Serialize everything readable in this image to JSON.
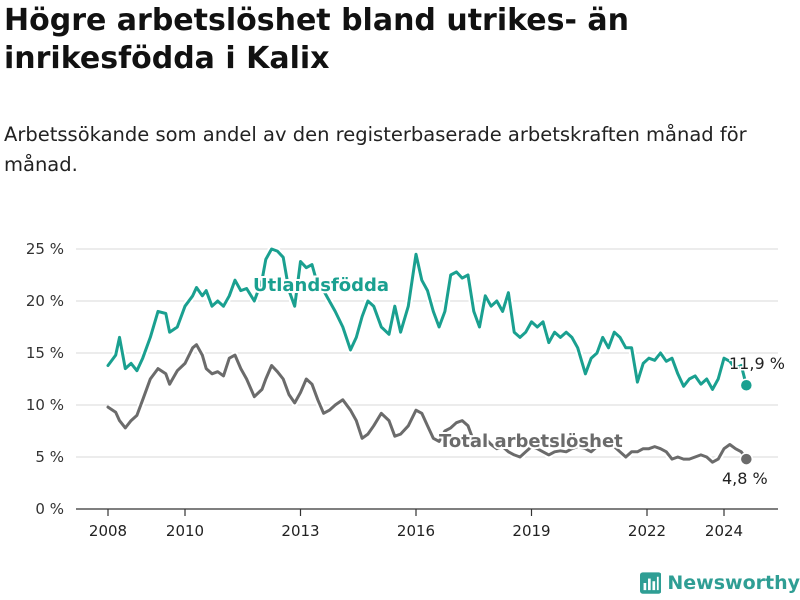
{
  "title": "Högre arbetslöshet bland utrikes- än inrikesfödda i Kalix",
  "subtitle": "Arbetssökande som andel av den registerbaserade arbetskraften månad för månad.",
  "brand": {
    "name": "Newsworthy",
    "icon": "bar-chart-logo-icon",
    "color": "#2f9e94"
  },
  "chart_data": {
    "type": "line",
    "grid": true,
    "legend": "inline labels",
    "ylim": [
      0,
      26
    ],
    "xlim": [
      2007.6,
      2025.4
    ],
    "y_ticks": [
      {
        "value": 0,
        "label": "0 %"
      },
      {
        "value": 5,
        "label": "5 %"
      },
      {
        "value": 10,
        "label": "10 %"
      },
      {
        "value": 15,
        "label": "15 %"
      },
      {
        "value": 20,
        "label": "20 %"
      },
      {
        "value": 25,
        "label": "25 %"
      }
    ],
    "x_ticks": [
      {
        "value": 2008,
        "label": "2008"
      },
      {
        "value": 2010,
        "label": "2010"
      },
      {
        "value": 2013,
        "label": "2013"
      },
      {
        "value": 2016,
        "label": "2016"
      },
      {
        "value": 2019,
        "label": "2019"
      },
      {
        "value": 2022,
        "label": "2022"
      },
      {
        "value": 2024,
        "label": "2024"
      }
    ],
    "series": [
      {
        "name": "Utlandsfödda",
        "color": "#1aa090",
        "end_label": "11,9 %",
        "points": [
          [
            2008.0,
            13.8
          ],
          [
            2008.2,
            14.8
          ],
          [
            2008.3,
            16.5
          ],
          [
            2008.45,
            13.5
          ],
          [
            2008.6,
            14.0
          ],
          [
            2008.75,
            13.3
          ],
          [
            2008.9,
            14.5
          ],
          [
            2009.1,
            16.5
          ],
          [
            2009.3,
            19.0
          ],
          [
            2009.5,
            18.8
          ],
          [
            2009.6,
            17.0
          ],
          [
            2009.8,
            17.5
          ],
          [
            2010.0,
            19.5
          ],
          [
            2010.2,
            20.5
          ],
          [
            2010.3,
            21.3
          ],
          [
            2010.45,
            20.5
          ],
          [
            2010.55,
            21.0
          ],
          [
            2010.7,
            19.5
          ],
          [
            2010.85,
            20.0
          ],
          [
            2011.0,
            19.5
          ],
          [
            2011.15,
            20.5
          ],
          [
            2011.3,
            22.0
          ],
          [
            2011.45,
            21.0
          ],
          [
            2011.6,
            21.2
          ],
          [
            2011.8,
            20.0
          ],
          [
            2012.0,
            22.0
          ],
          [
            2012.1,
            24.0
          ],
          [
            2012.25,
            25.0
          ],
          [
            2012.4,
            24.8
          ],
          [
            2012.55,
            24.2
          ],
          [
            2012.7,
            21.0
          ],
          [
            2012.85,
            19.5
          ],
          [
            2013.0,
            23.8
          ],
          [
            2013.15,
            23.2
          ],
          [
            2013.3,
            23.5
          ],
          [
            2013.45,
            21.5
          ],
          [
            2013.6,
            21.0
          ],
          [
            2013.75,
            20.0
          ],
          [
            2013.9,
            19.0
          ],
          [
            2014.1,
            17.5
          ],
          [
            2014.3,
            15.3
          ],
          [
            2014.45,
            16.5
          ],
          [
            2014.6,
            18.5
          ],
          [
            2014.75,
            20.0
          ],
          [
            2014.9,
            19.5
          ],
          [
            2015.1,
            17.5
          ],
          [
            2015.3,
            16.8
          ],
          [
            2015.45,
            19.5
          ],
          [
            2015.6,
            17.0
          ],
          [
            2015.8,
            19.5
          ],
          [
            2016.0,
            24.5
          ],
          [
            2016.15,
            22.0
          ],
          [
            2016.3,
            21.0
          ],
          [
            2016.45,
            19.0
          ],
          [
            2016.6,
            17.5
          ],
          [
            2016.75,
            19.0
          ],
          [
            2016.9,
            22.5
          ],
          [
            2017.05,
            22.8
          ],
          [
            2017.2,
            22.2
          ],
          [
            2017.35,
            22.5
          ],
          [
            2017.5,
            19.0
          ],
          [
            2017.65,
            17.5
          ],
          [
            2017.8,
            20.5
          ],
          [
            2017.95,
            19.5
          ],
          [
            2018.1,
            20.0
          ],
          [
            2018.25,
            19.0
          ],
          [
            2018.4,
            20.8
          ],
          [
            2018.55,
            17.0
          ],
          [
            2018.7,
            16.5
          ],
          [
            2018.85,
            17.0
          ],
          [
            2019.0,
            18.0
          ],
          [
            2019.15,
            17.5
          ],
          [
            2019.3,
            18.0
          ],
          [
            2019.45,
            16.0
          ],
          [
            2019.6,
            17.0
          ],
          [
            2019.75,
            16.5
          ],
          [
            2019.9,
            17.0
          ],
          [
            2020.05,
            16.5
          ],
          [
            2020.2,
            15.5
          ],
          [
            2020.4,
            13.0
          ],
          [
            2020.55,
            14.5
          ],
          [
            2020.7,
            15.0
          ],
          [
            2020.85,
            16.5
          ],
          [
            2021.0,
            15.5
          ],
          [
            2021.15,
            17.0
          ],
          [
            2021.3,
            16.5
          ],
          [
            2021.45,
            15.5
          ],
          [
            2021.6,
            15.5
          ],
          [
            2021.75,
            12.2
          ],
          [
            2021.9,
            14.0
          ],
          [
            2022.05,
            14.5
          ],
          [
            2022.2,
            14.3
          ],
          [
            2022.35,
            15.0
          ],
          [
            2022.5,
            14.2
          ],
          [
            2022.65,
            14.5
          ],
          [
            2022.8,
            13.0
          ],
          [
            2022.95,
            11.8
          ],
          [
            2023.1,
            12.5
          ],
          [
            2023.25,
            12.8
          ],
          [
            2023.4,
            12.0
          ],
          [
            2023.55,
            12.5
          ],
          [
            2023.7,
            11.5
          ],
          [
            2023.85,
            12.5
          ],
          [
            2024.0,
            14.5
          ],
          [
            2024.15,
            14.2
          ],
          [
            2024.3,
            13.5
          ],
          [
            2024.45,
            13.8
          ],
          [
            2024.58,
            11.9
          ]
        ]
      },
      {
        "name": "Total arbetslöshet",
        "color": "#6b6b6b",
        "end_label": "4,8 %",
        "points": [
          [
            2008.0,
            9.8
          ],
          [
            2008.2,
            9.3
          ],
          [
            2008.3,
            8.5
          ],
          [
            2008.45,
            7.8
          ],
          [
            2008.6,
            8.5
          ],
          [
            2008.75,
            9.0
          ],
          [
            2008.9,
            10.5
          ],
          [
            2009.1,
            12.5
          ],
          [
            2009.3,
            13.5
          ],
          [
            2009.5,
            13.0
          ],
          [
            2009.6,
            12.0
          ],
          [
            2009.8,
            13.3
          ],
          [
            2010.0,
            14.0
          ],
          [
            2010.2,
            15.5
          ],
          [
            2010.3,
            15.8
          ],
          [
            2010.45,
            14.8
          ],
          [
            2010.55,
            13.5
          ],
          [
            2010.7,
            13.0
          ],
          [
            2010.85,
            13.2
          ],
          [
            2011.0,
            12.8
          ],
          [
            2011.15,
            14.5
          ],
          [
            2011.3,
            14.8
          ],
          [
            2011.45,
            13.5
          ],
          [
            2011.6,
            12.5
          ],
          [
            2011.8,
            10.8
          ],
          [
            2012.0,
            11.5
          ],
          [
            2012.1,
            12.5
          ],
          [
            2012.25,
            13.8
          ],
          [
            2012.4,
            13.2
          ],
          [
            2012.55,
            12.5
          ],
          [
            2012.7,
            11.0
          ],
          [
            2012.85,
            10.2
          ],
          [
            2013.0,
            11.2
          ],
          [
            2013.15,
            12.5
          ],
          [
            2013.3,
            12.0
          ],
          [
            2013.45,
            10.5
          ],
          [
            2013.6,
            9.2
          ],
          [
            2013.75,
            9.5
          ],
          [
            2013.9,
            10.0
          ],
          [
            2014.1,
            10.5
          ],
          [
            2014.3,
            9.5
          ],
          [
            2014.45,
            8.5
          ],
          [
            2014.6,
            6.8
          ],
          [
            2014.75,
            7.2
          ],
          [
            2014.9,
            8.0
          ],
          [
            2015.1,
            9.2
          ],
          [
            2015.3,
            8.5
          ],
          [
            2015.45,
            7.0
          ],
          [
            2015.6,
            7.2
          ],
          [
            2015.8,
            8.0
          ],
          [
            2016.0,
            9.5
          ],
          [
            2016.15,
            9.2
          ],
          [
            2016.3,
            8.0
          ],
          [
            2016.45,
            6.8
          ],
          [
            2016.6,
            6.5
          ],
          [
            2016.75,
            7.5
          ],
          [
            2016.9,
            7.8
          ],
          [
            2017.05,
            8.3
          ],
          [
            2017.2,
            8.5
          ],
          [
            2017.35,
            8.0
          ],
          [
            2017.5,
            6.5
          ],
          [
            2017.65,
            6.0
          ],
          [
            2017.8,
            6.8
          ],
          [
            2017.95,
            6.2
          ],
          [
            2018.1,
            5.8
          ],
          [
            2018.25,
            6.0
          ],
          [
            2018.4,
            5.5
          ],
          [
            2018.55,
            5.2
          ],
          [
            2018.7,
            5.0
          ],
          [
            2018.85,
            5.5
          ],
          [
            2019.0,
            6.0
          ],
          [
            2019.15,
            5.8
          ],
          [
            2019.3,
            5.5
          ],
          [
            2019.45,
            5.2
          ],
          [
            2019.6,
            5.5
          ],
          [
            2019.75,
            5.6
          ],
          [
            2019.9,
            5.5
          ],
          [
            2020.05,
            5.8
          ],
          [
            2020.2,
            6.0
          ],
          [
            2020.4,
            5.8
          ],
          [
            2020.55,
            5.5
          ],
          [
            2020.7,
            6.0
          ],
          [
            2020.85,
            6.5
          ],
          [
            2021.0,
            6.5
          ],
          [
            2021.15,
            6.0
          ],
          [
            2021.3,
            5.5
          ],
          [
            2021.45,
            5.0
          ],
          [
            2021.6,
            5.5
          ],
          [
            2021.75,
            5.5
          ],
          [
            2021.9,
            5.8
          ],
          [
            2022.05,
            5.8
          ],
          [
            2022.2,
            6.0
          ],
          [
            2022.35,
            5.8
          ],
          [
            2022.5,
            5.5
          ],
          [
            2022.65,
            4.8
          ],
          [
            2022.8,
            5.0
          ],
          [
            2022.95,
            4.8
          ],
          [
            2023.1,
            4.8
          ],
          [
            2023.25,
            5.0
          ],
          [
            2023.4,
            5.2
          ],
          [
            2023.55,
            5.0
          ],
          [
            2023.7,
            4.5
          ],
          [
            2023.85,
            4.8
          ],
          [
            2024.0,
            5.8
          ],
          [
            2024.15,
            6.2
          ],
          [
            2024.3,
            5.8
          ],
          [
            2024.45,
            5.5
          ],
          [
            2024.58,
            4.8
          ]
        ]
      }
    ]
  }
}
